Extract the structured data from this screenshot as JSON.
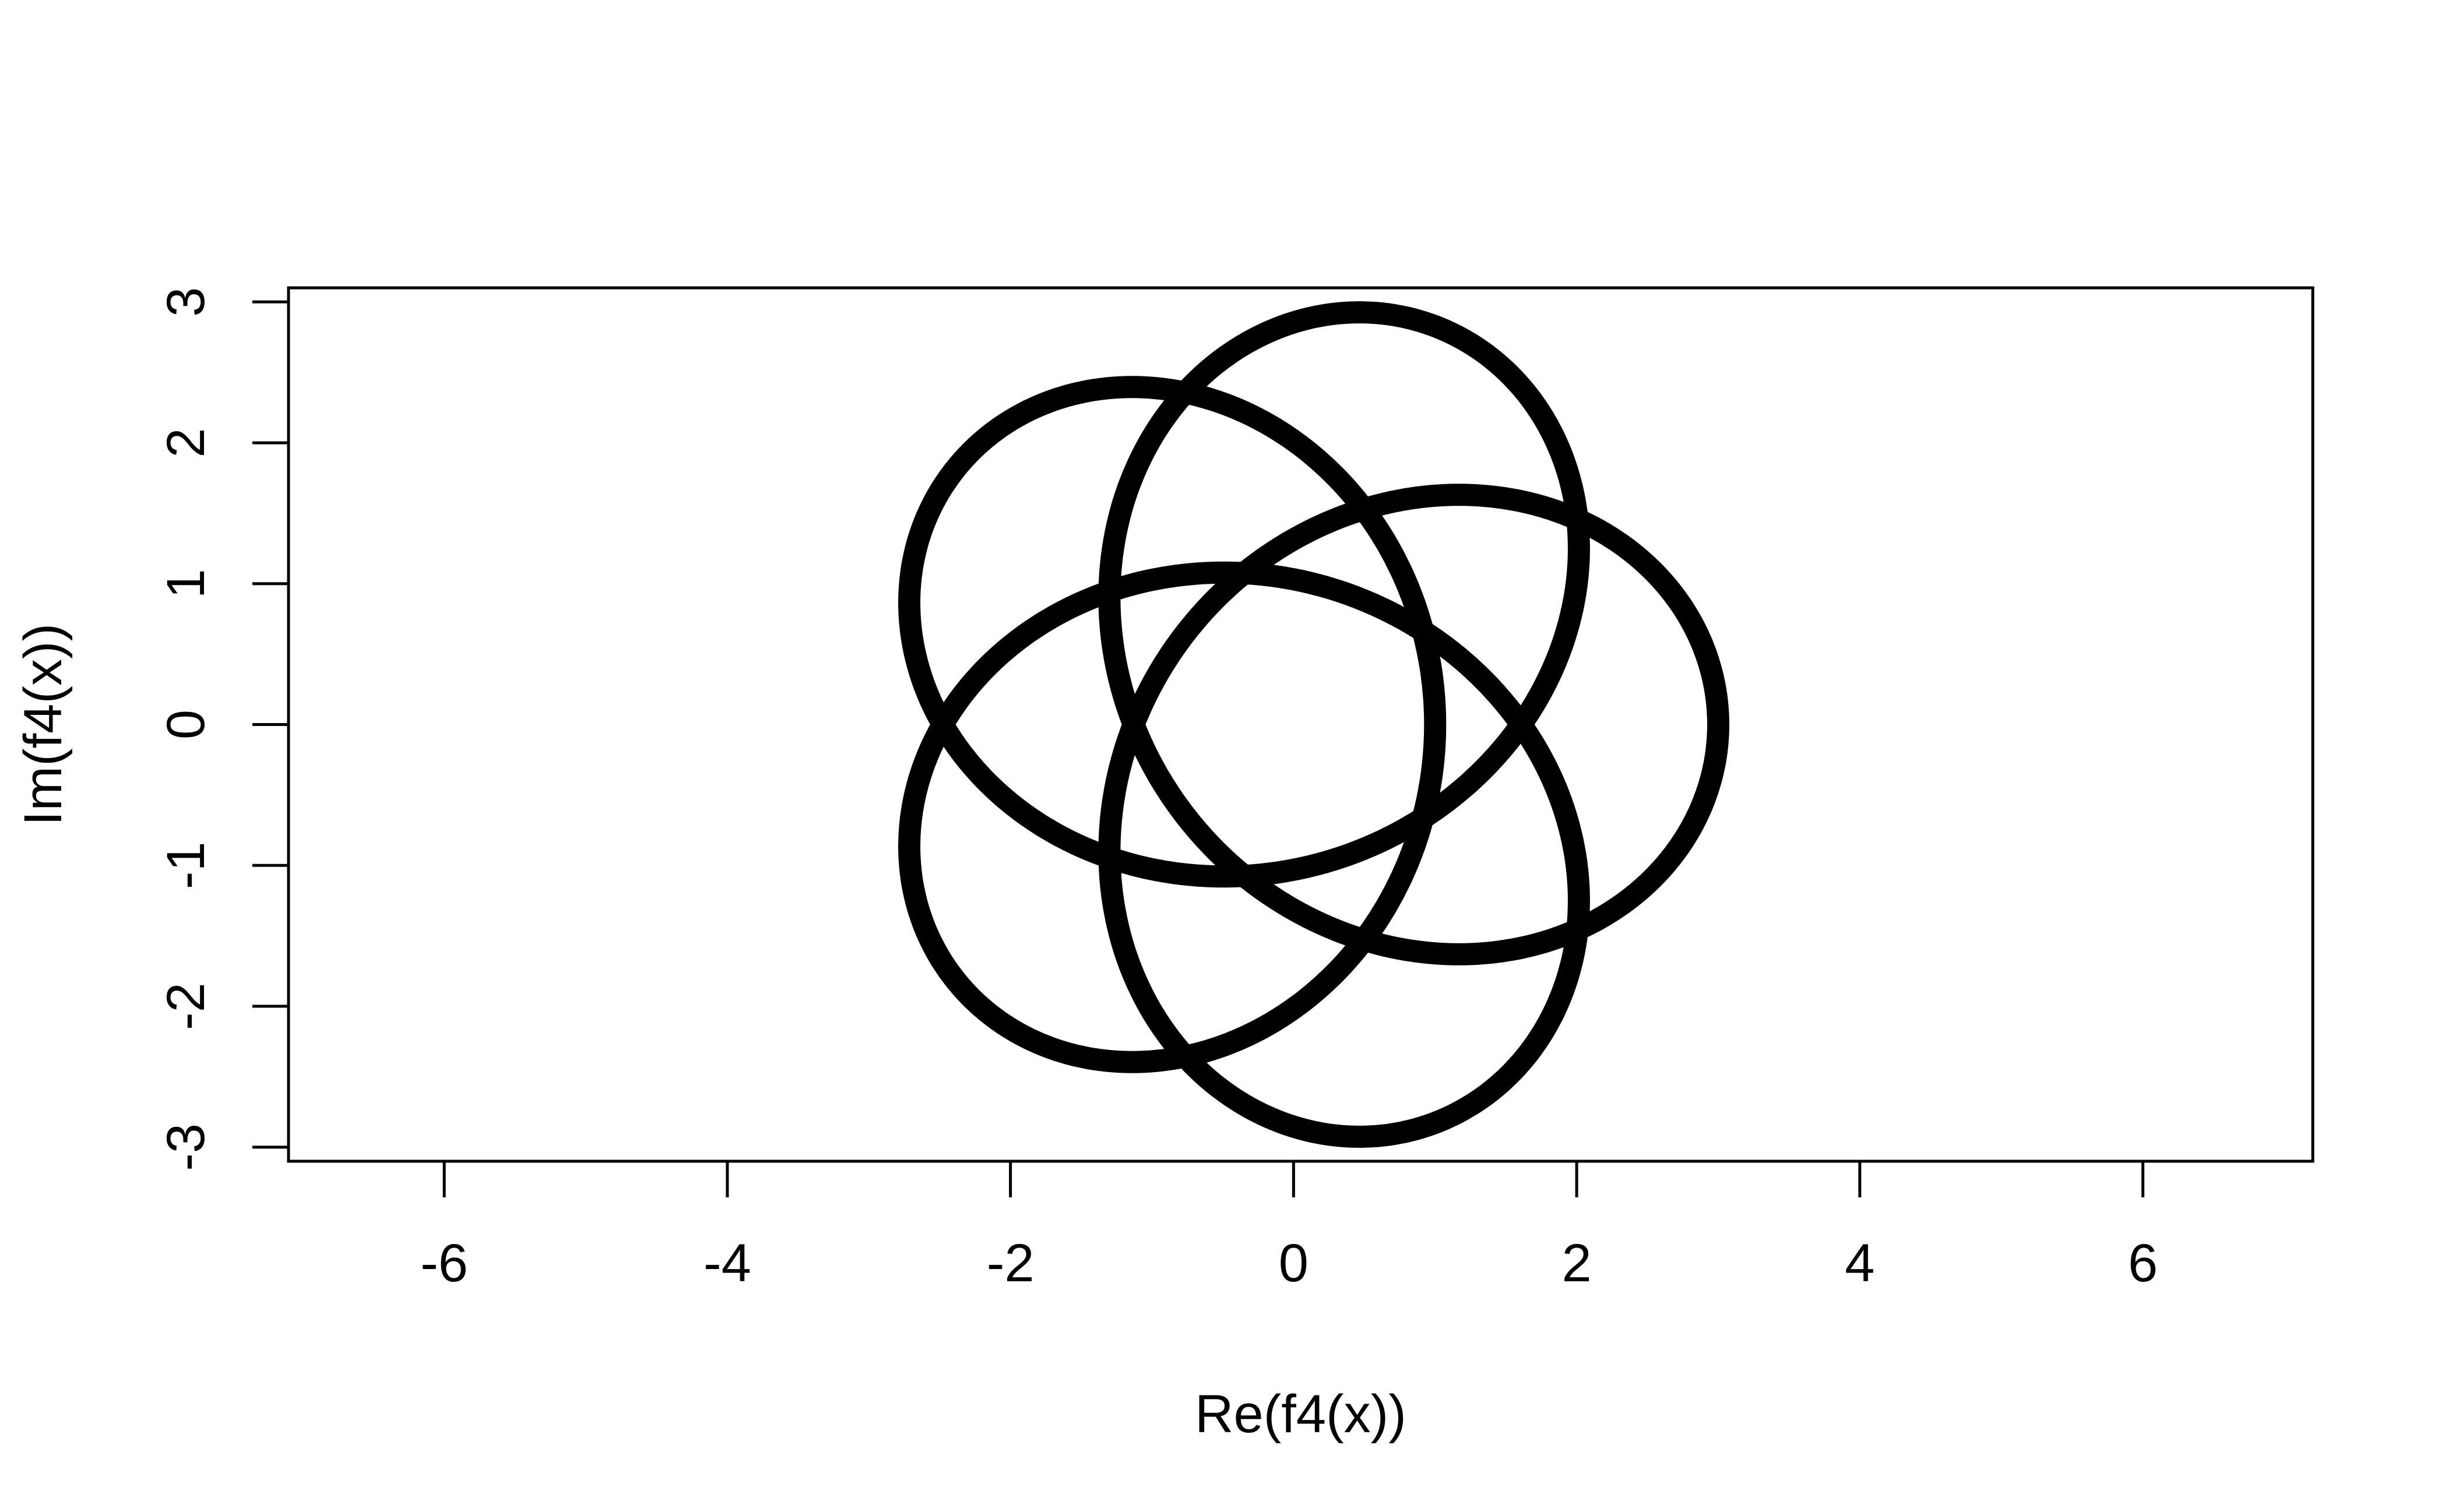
{
  "chart_data": {
    "type": "line",
    "title": "",
    "xlabel": "Re(f4(x))",
    "ylabel": "Im(f4(x))",
    "xlim": [
      -7.1,
      7.2
    ],
    "ylim": [
      -3.1,
      3.1
    ],
    "x_ticks": [
      -6,
      -4,
      -2,
      0,
      2,
      4,
      6
    ],
    "y_ticks": [
      -3,
      -2,
      -1,
      0,
      1,
      2,
      3
    ],
    "x_tick_labels": [
      "-6",
      "-4",
      "-2",
      "0",
      "2",
      "4",
      "6"
    ],
    "y_tick_labels": [
      "-3",
      "-2",
      "-1",
      "0",
      "1",
      "2",
      "3"
    ],
    "grid": false,
    "legend": "none",
    "series": [
      {
        "curve": "parametric closed curve: z(t) = e^{it} + 2*e^{-4it}, t in [0, 2π]",
        "samples": 2000,
        "color": "#000000"
      }
    ],
    "colors": {
      "line": "#000000",
      "frame": "#000000",
      "background": "#ffffff"
    }
  }
}
